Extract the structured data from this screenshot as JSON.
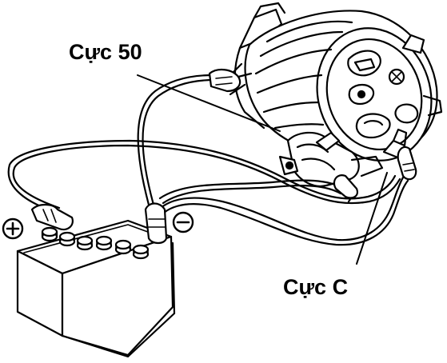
{
  "labels": {
    "terminal_50": "Cực 50",
    "terminal_c": "Cực C"
  },
  "icons": {
    "positive_terminal": "plus-sign",
    "negative_terminal": "minus-sign"
  },
  "colors": {
    "ink": "#000000",
    "paper": "#ffffff"
  }
}
